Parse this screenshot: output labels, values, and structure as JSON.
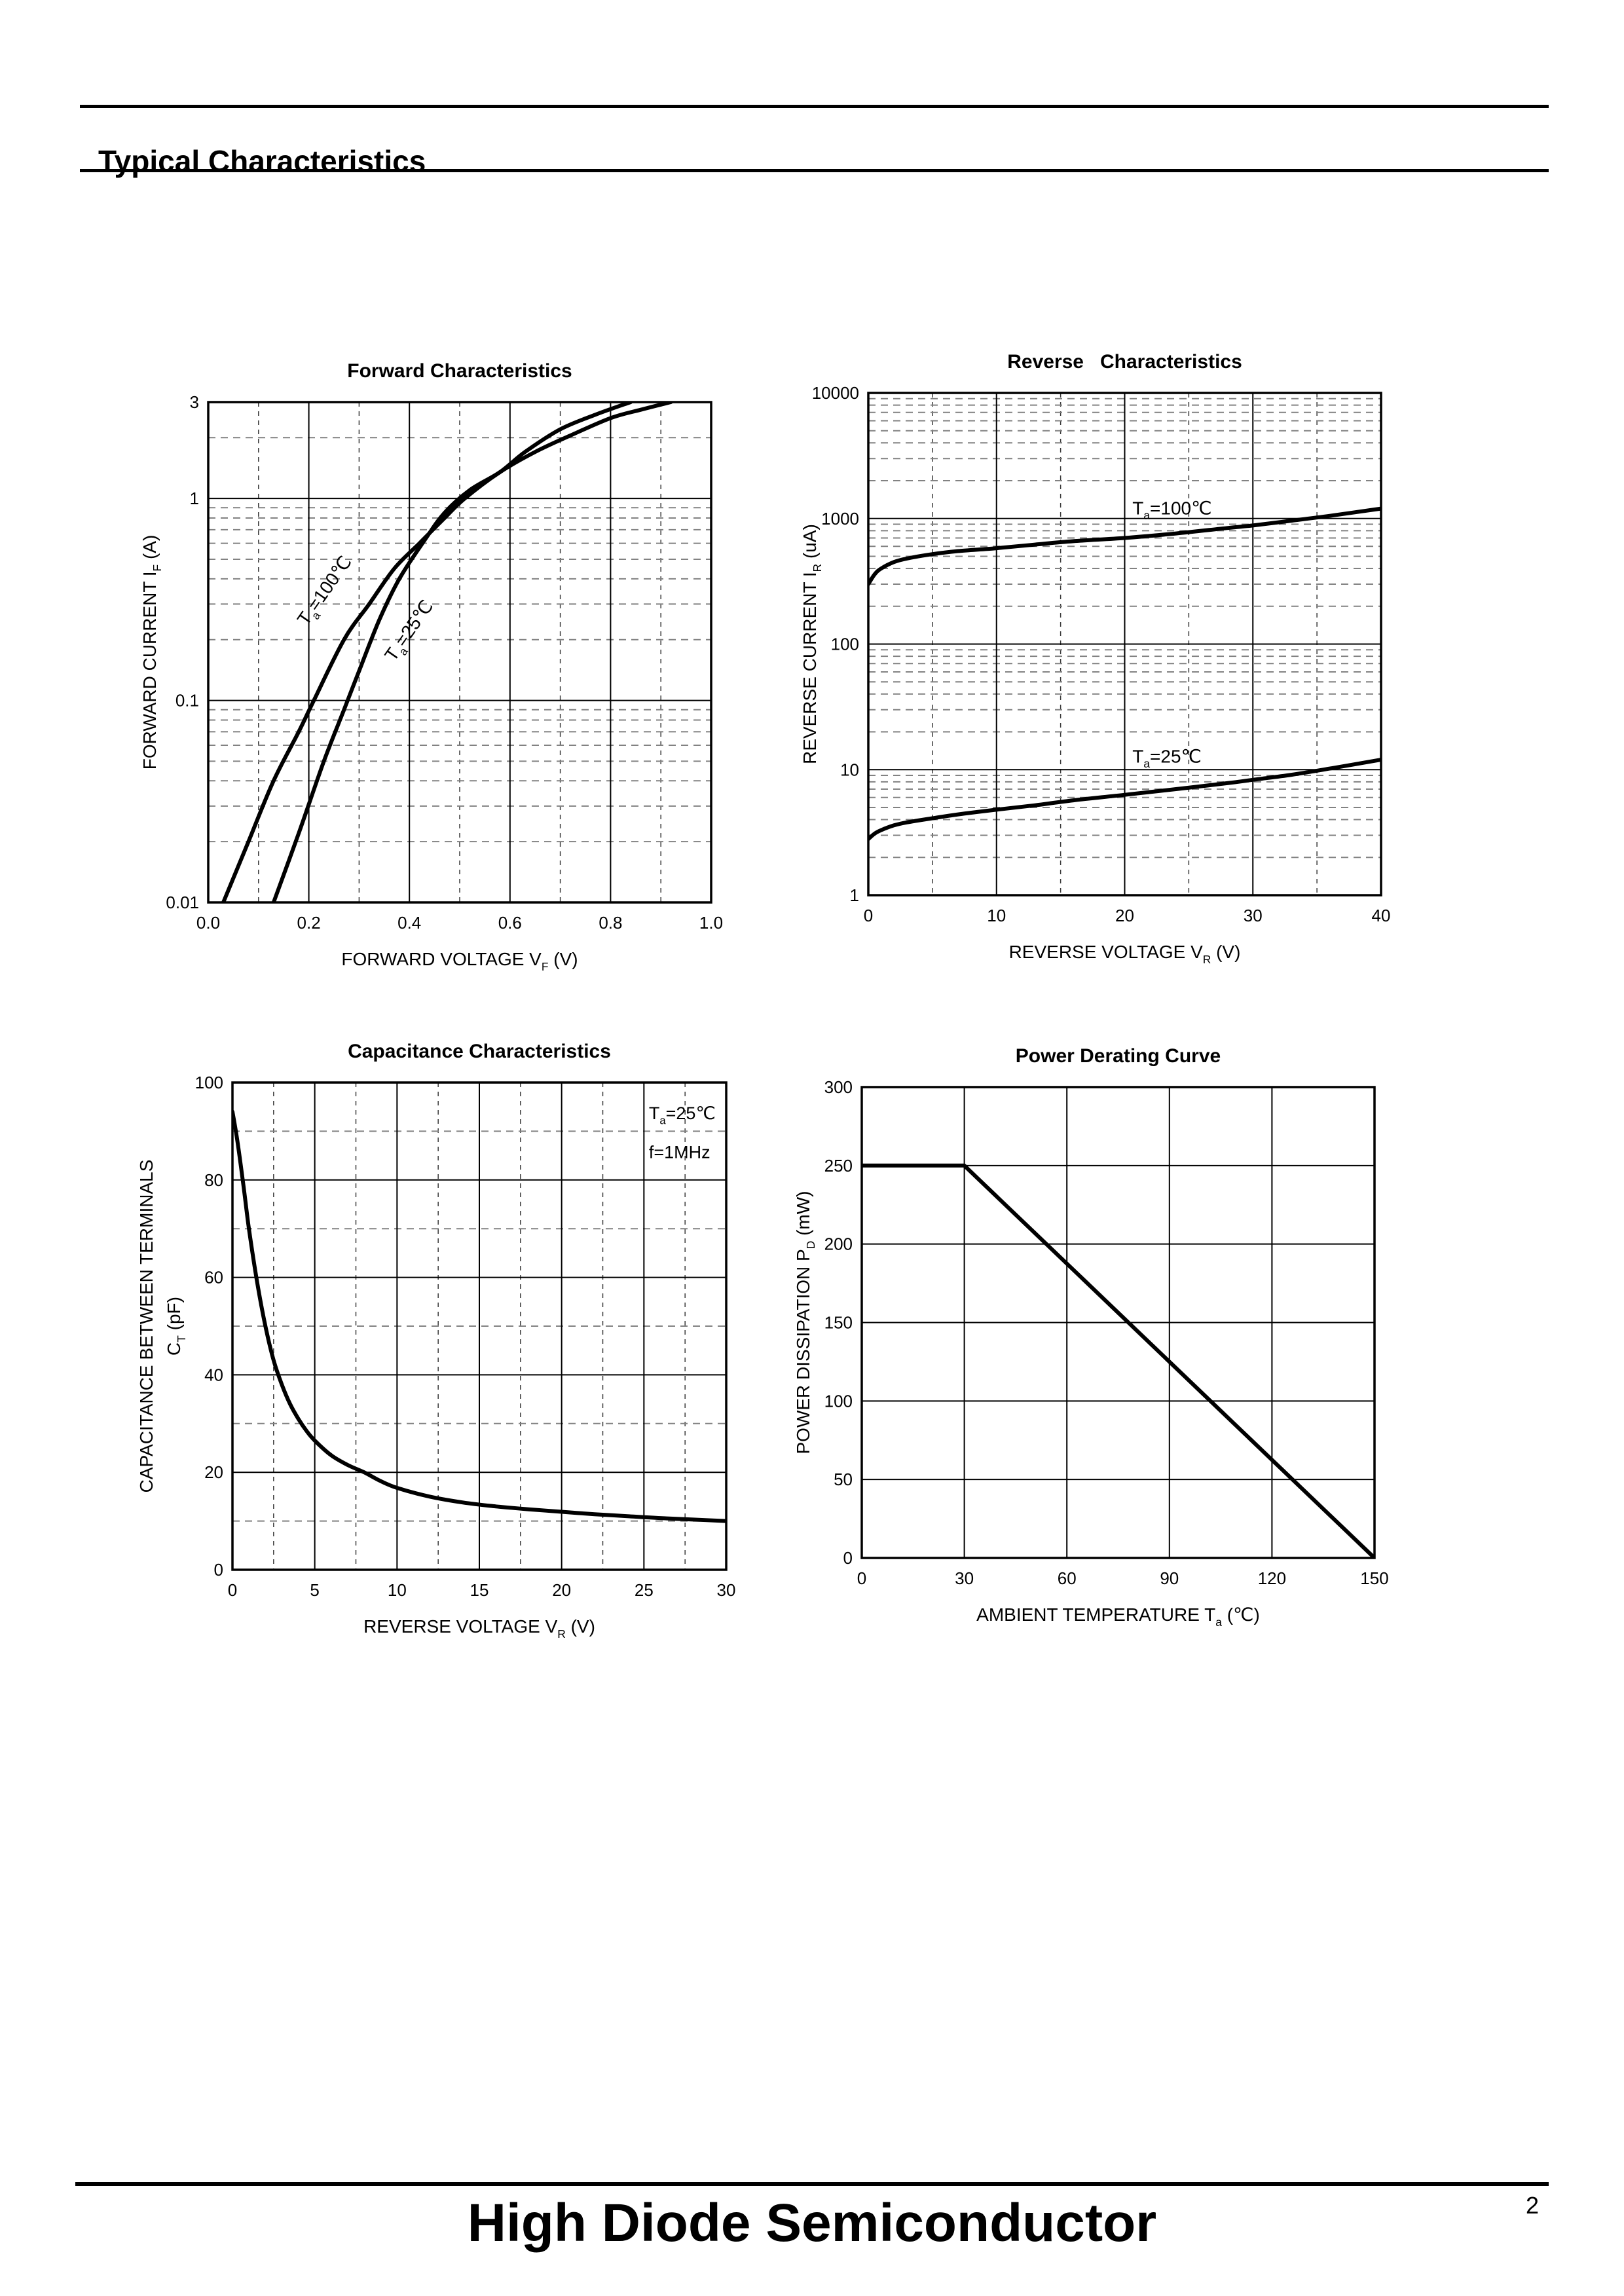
{
  "header": {
    "title": "Typical Characteristics"
  },
  "footer": {
    "company": "High Diode Semiconductor",
    "page_number": "2"
  },
  "style": {
    "ink": "#000000",
    "grid_major": "#000000",
    "grid_minor_x": "#3a3a3a",
    "grid_minor_y": "#828282",
    "background": "#ffffff"
  },
  "chart_data": [
    {
      "id": "forward-characteristics",
      "type": "line",
      "title": "Forward Characteristics",
      "grid": "major-solid-minor-dashed",
      "x_axis": {
        "scale": "linear",
        "min": 0,
        "max": 1,
        "major_step": 0.2,
        "minor_step": 0.1,
        "label": "FORWARD VOLTAGE V_{F} (V)",
        "ticks": [
          {
            "v": 0,
            "label": "0.0"
          },
          {
            "v": 0.2,
            "label": "0.2"
          },
          {
            "v": 0.4,
            "label": "0.4"
          },
          {
            "v": 0.6,
            "label": "0.6"
          },
          {
            "v": 0.8,
            "label": "0.8"
          },
          {
            "v": 1,
            "label": "1.0"
          }
        ]
      },
      "y_axis": {
        "scale": "log",
        "min": 0.01,
        "max": 3,
        "label": [
          "FORWARD CURRENT I_{F} (A)"
        ],
        "ticks": [
          {
            "v": 3,
            "label": "3"
          },
          {
            "v": 1,
            "label": "1"
          },
          {
            "v": 0.1,
            "label": "0.1"
          },
          {
            "v": 0.01,
            "label": "0.01"
          }
        ]
      },
      "series": [
        {
          "name": "Ta=100C",
          "label": "T_{a}=100℃",
          "label_x": 0.241,
          "label_y": 0.336,
          "label_rotate": -55,
          "label_anchor": "middle",
          "smooth": true,
          "points": [
            [
              0.03,
              0.01
            ],
            [
              0.08,
              0.02
            ],
            [
              0.13,
              0.04
            ],
            [
              0.18,
              0.07
            ],
            [
              0.21,
              0.1
            ],
            [
              0.27,
              0.2
            ],
            [
              0.32,
              0.3
            ],
            [
              0.37,
              0.45
            ],
            [
              0.42,
              0.6
            ],
            [
              0.47,
              0.8
            ],
            [
              0.51,
              1.0
            ],
            [
              0.58,
              1.35
            ],
            [
              0.65,
              1.7
            ],
            [
              0.72,
              2.05
            ],
            [
              0.8,
              2.5
            ],
            [
              0.86,
              2.75
            ],
            [
              0.92,
              3.0
            ]
          ]
        },
        {
          "name": "Ta=25C",
          "label": "T_{a}=25℃",
          "label_x": 0.409,
          "label_y": 0.213,
          "label_rotate": -55,
          "label_anchor": "middle",
          "smooth": true,
          "points": [
            [
              0.13,
              0.01
            ],
            [
              0.18,
              0.022
            ],
            [
              0.23,
              0.05
            ],
            [
              0.27,
              0.09
            ],
            [
              0.3,
              0.14
            ],
            [
              0.34,
              0.25
            ],
            [
              0.38,
              0.4
            ],
            [
              0.43,
              0.62
            ],
            [
              0.47,
              0.85
            ],
            [
              0.52,
              1.1
            ],
            [
              0.58,
              1.35
            ],
            [
              0.63,
              1.7
            ],
            [
              0.7,
              2.2
            ],
            [
              0.77,
              2.6
            ],
            [
              0.84,
              3.0
            ]
          ]
        }
      ]
    },
    {
      "id": "reverse-characteristics",
      "type": "line",
      "title": "Reverse   Characteristics",
      "grid": "major-solid-minor-dashed",
      "x_axis": {
        "scale": "linear",
        "min": 0,
        "max": 40,
        "major_step": 10,
        "minor_step": 5,
        "label": "REVERSE VOLTAGE V_{R} (V)",
        "ticks": [
          {
            "v": 0,
            "label": "0"
          },
          {
            "v": 10,
            "label": "10"
          },
          {
            "v": 20,
            "label": "20"
          },
          {
            "v": 30,
            "label": "30"
          },
          {
            "v": 40,
            "label": "40"
          }
        ]
      },
      "y_axis": {
        "scale": "log",
        "min": 1,
        "max": 10000,
        "label": [
          "REVERSE CURRENT I_{R} (uA)"
        ],
        "ticks": [
          {
            "v": 10000,
            "label": "10000"
          },
          {
            "v": 1000,
            "label": "1000"
          },
          {
            "v": 100,
            "label": "100"
          },
          {
            "v": 10,
            "label": "10"
          },
          {
            "v": 1,
            "label": "1"
          }
        ]
      },
      "series": [
        {
          "name": "Ta=100C",
          "label": "T_{a}=100℃",
          "label_x": 20.6,
          "label_y": 1080,
          "label_anchor": "start",
          "smooth": true,
          "points": [
            [
              0,
              300
            ],
            [
              0.5,
              360
            ],
            [
              1,
              400
            ],
            [
              2,
              450
            ],
            [
              3,
              480
            ],
            [
              5,
              520
            ],
            [
              7,
              550
            ],
            [
              10,
              580
            ],
            [
              13,
              620
            ],
            [
              16,
              660
            ],
            [
              20,
              700
            ],
            [
              24,
              760
            ],
            [
              28,
              840
            ],
            [
              30,
              880
            ],
            [
              33,
              960
            ],
            [
              36,
              1050
            ],
            [
              40,
              1200
            ]
          ]
        },
        {
          "name": "Ta=25C",
          "label": "T_{a}=25℃",
          "label_x": 20.6,
          "label_y": 11.4,
          "label_anchor": "start",
          "smooth": true,
          "points": [
            [
              0,
              2.8
            ],
            [
              0.5,
              3.1
            ],
            [
              1,
              3.3
            ],
            [
              2,
              3.6
            ],
            [
              3,
              3.8
            ],
            [
              5,
              4.1
            ],
            [
              7,
              4.4
            ],
            [
              10,
              4.8
            ],
            [
              13,
              5.2
            ],
            [
              16,
              5.7
            ],
            [
              20,
              6.3
            ],
            [
              24,
              7.0
            ],
            [
              28,
              7.8
            ],
            [
              30,
              8.3
            ],
            [
              33,
              9.1
            ],
            [
              36,
              10.2
            ],
            [
              40,
              12
            ]
          ]
        }
      ]
    },
    {
      "id": "capacitance-characteristics",
      "type": "line",
      "title": "Capacitance Characteristics",
      "grid": "major-solid-minor-dashed",
      "x_axis": {
        "scale": "linear",
        "min": 0,
        "max": 30,
        "major_step": 5,
        "minor_step": 2.5,
        "label": "REVERSE VOLTAGE V_{R} (V)",
        "ticks": [
          {
            "v": 0,
            "label": "0"
          },
          {
            "v": 5,
            "label": "5"
          },
          {
            "v": 10,
            "label": "10"
          },
          {
            "v": 15,
            "label": "15"
          },
          {
            "v": 20,
            "label": "20"
          },
          {
            "v": 25,
            "label": "25"
          },
          {
            "v": 30,
            "label": "30"
          }
        ]
      },
      "y_axis": {
        "scale": "linear",
        "min": 0,
        "max": 100,
        "major_step": 20,
        "minor_step": 10,
        "label": [
          "CAPACITANCE BETWEEN TERMINALS",
          "C_{T} (pF)"
        ],
        "ticks": [
          {
            "v": 0,
            "label": "0"
          },
          {
            "v": 20,
            "label": "20"
          },
          {
            "v": 40,
            "label": "40"
          },
          {
            "v": 60,
            "label": "60"
          },
          {
            "v": 80,
            "label": "80"
          },
          {
            "v": 100,
            "label": "100"
          }
        ]
      },
      "annotations": [
        {
          "text": "T_{a}=25℃",
          "x": 25.3,
          "y": 92.5,
          "anchor": "start"
        },
        {
          "text": "f=1MHz",
          "x": 25.3,
          "y": 84.5,
          "anchor": "start"
        }
      ],
      "series": [
        {
          "name": "CT",
          "smooth": true,
          "points": [
            [
              0,
              94
            ],
            [
              0.3,
              88
            ],
            [
              0.7,
              78
            ],
            [
              1,
              70
            ],
            [
              1.5,
              59
            ],
            [
              2,
              50
            ],
            [
              2.5,
              43
            ],
            [
              3,
              38
            ],
            [
              3.5,
              34
            ],
            [
              4,
              31
            ],
            [
              4.5,
              28.5
            ],
            [
              5,
              26.5
            ],
            [
              6,
              23.5
            ],
            [
              7,
              21.5
            ],
            [
              8,
              20
            ],
            [
              9,
              18.2
            ],
            [
              10,
              16.8
            ],
            [
              12,
              15
            ],
            [
              14,
              13.8
            ],
            [
              16,
              13
            ],
            [
              18,
              12.4
            ],
            [
              20,
              11.9
            ],
            [
              22,
              11.4
            ],
            [
              24,
              11
            ],
            [
              26,
              10.6
            ],
            [
              28,
              10.3
            ],
            [
              30,
              10
            ]
          ]
        }
      ]
    },
    {
      "id": "power-derating",
      "type": "line",
      "title": "Power Derating Curve",
      "grid": "major-solid",
      "x_axis": {
        "scale": "linear",
        "min": 0,
        "max": 150,
        "major_step": 30,
        "minor_step": null,
        "label": "AMBIENT TEMPERATURE T_{a} (℃)",
        "ticks": [
          {
            "v": 0,
            "label": "0"
          },
          {
            "v": 30,
            "label": "30"
          },
          {
            "v": 60,
            "label": "60"
          },
          {
            "v": 90,
            "label": "90"
          },
          {
            "v": 120,
            "label": "120"
          },
          {
            "v": 150,
            "label": "150"
          }
        ]
      },
      "y_axis": {
        "scale": "linear",
        "min": 0,
        "max": 300,
        "major_step": 50,
        "minor_step": null,
        "label": [
          "POWER DISSIPATION P_{D} (mW)"
        ],
        "ticks": [
          {
            "v": 0,
            "label": "0"
          },
          {
            "v": 50,
            "label": "50"
          },
          {
            "v": 100,
            "label": "100"
          },
          {
            "v": 150,
            "label": "150"
          },
          {
            "v": 200,
            "label": "200"
          },
          {
            "v": 250,
            "label": "250"
          },
          {
            "v": 300,
            "label": "300"
          }
        ]
      },
      "series": [
        {
          "name": "PD",
          "smooth": false,
          "points": [
            [
              0,
              250
            ],
            [
              30,
              250
            ],
            [
              150,
              0
            ]
          ]
        }
      ]
    }
  ]
}
